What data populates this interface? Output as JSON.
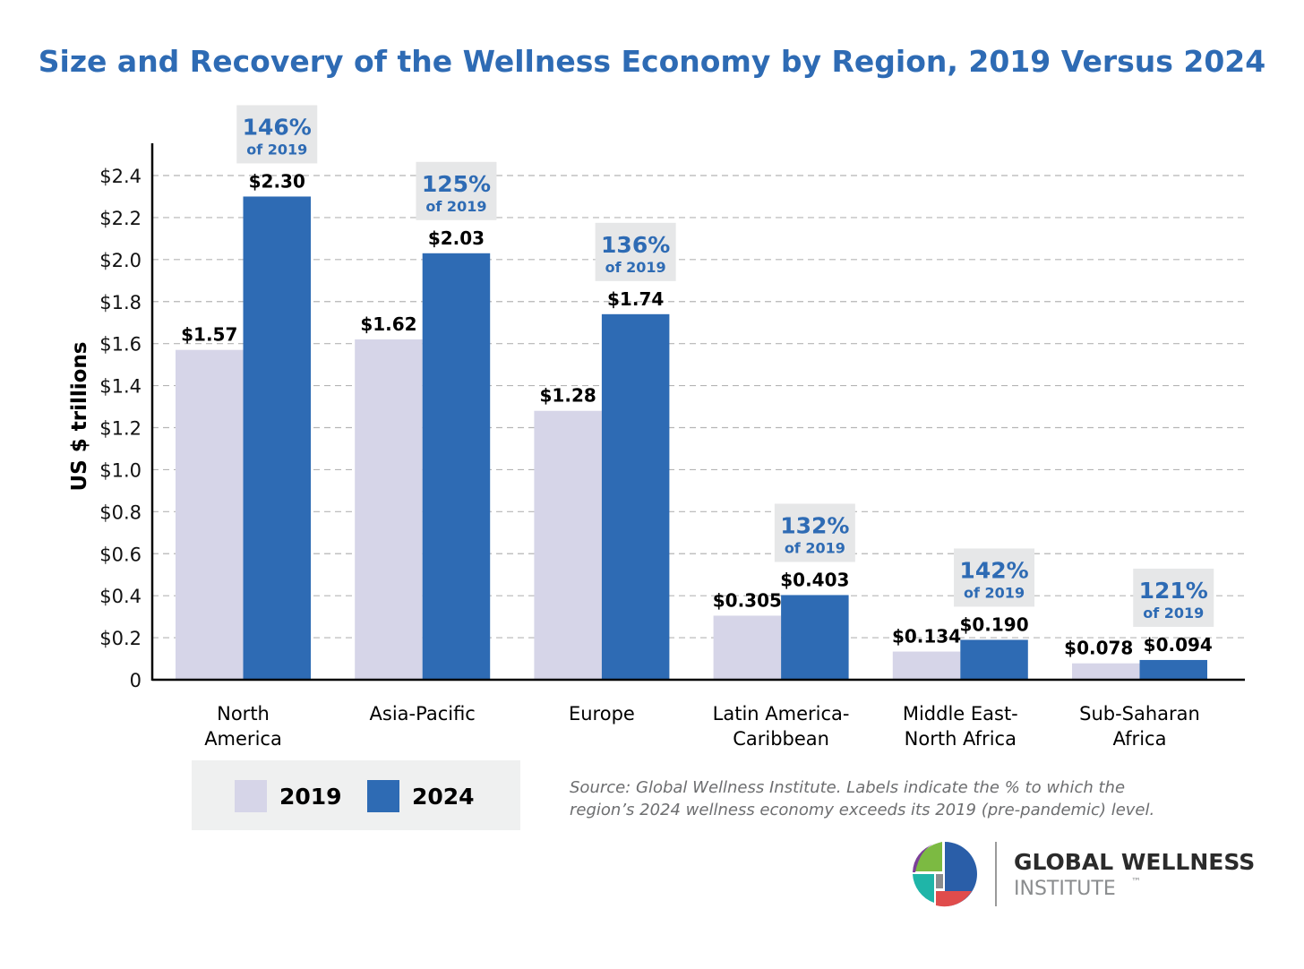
{
  "chart_data": {
    "type": "bar",
    "title": "Size and Recovery of the Wellness Economy by Region, 2019 Versus 2024",
    "ylabel": "US $ trillions",
    "xlabel": "",
    "ylim": [
      0,
      2.4
    ],
    "yticks": [
      0,
      0.2,
      0.4,
      0.6,
      0.8,
      1.0,
      1.2,
      1.4,
      1.6,
      1.8,
      2.0,
      2.2,
      2.4
    ],
    "ytick_labels": [
      "0",
      "$0.2",
      "$0.4",
      "$0.6",
      "$0.8",
      "$1.0",
      "$1.2",
      "$1.4",
      "$1.6",
      "$1.8",
      "$2.0",
      "$2.2",
      "$2.4"
    ],
    "grid": "horizontal dashed",
    "categories": [
      [
        "North",
        "America"
      ],
      [
        "Asia-Pacific"
      ],
      [
        "Europe"
      ],
      [
        "Latin America-",
        "Caribbean"
      ],
      [
        "Middle East-",
        "North Africa"
      ],
      [
        "Sub-Saharan",
        "Africa"
      ]
    ],
    "series": [
      {
        "name": "2019",
        "color": "#d6d5e8",
        "values": [
          1.57,
          1.62,
          1.28,
          0.305,
          0.134,
          0.078
        ],
        "labels": [
          "$1.57",
          "$1.62",
          "$1.28",
          "$0.305",
          "$0.134",
          "$0.078"
        ]
      },
      {
        "name": "2024",
        "color": "#2e6bb4",
        "values": [
          2.3,
          2.03,
          1.74,
          0.403,
          0.19,
          0.094
        ],
        "labels": [
          "$2.30",
          "$2.03",
          "$1.74",
          "$0.403",
          "$0.190",
          "$0.094"
        ]
      }
    ],
    "annotations": [
      {
        "pct": "146%",
        "sub": "of 2019"
      },
      {
        "pct": "125%",
        "sub": "of 2019"
      },
      {
        "pct": "136%",
        "sub": "of 2019"
      },
      {
        "pct": "132%",
        "sub": "of 2019"
      },
      {
        "pct": "142%",
        "sub": "of 2019"
      },
      {
        "pct": "121%",
        "sub": "of 2019"
      }
    ],
    "legend": {
      "placement": "bottom-left",
      "entries": [
        "2019",
        "2024"
      ]
    }
  },
  "source": [
    "Source: Global Wellness Institute. Labels indicate the % to which the",
    "region’s 2024 wellness economy exceeds its 2019 (pre-pandemic) level."
  ],
  "logo": {
    "line1": "GLOBAL WELLNESS",
    "line2": "INSTITUTE",
    "tm": "™"
  },
  "colors": {
    "title": "#2e6bb4",
    "axis": "#000000",
    "callout_bg": "#e6e7e8",
    "legend_bg": "#eff0f0"
  }
}
